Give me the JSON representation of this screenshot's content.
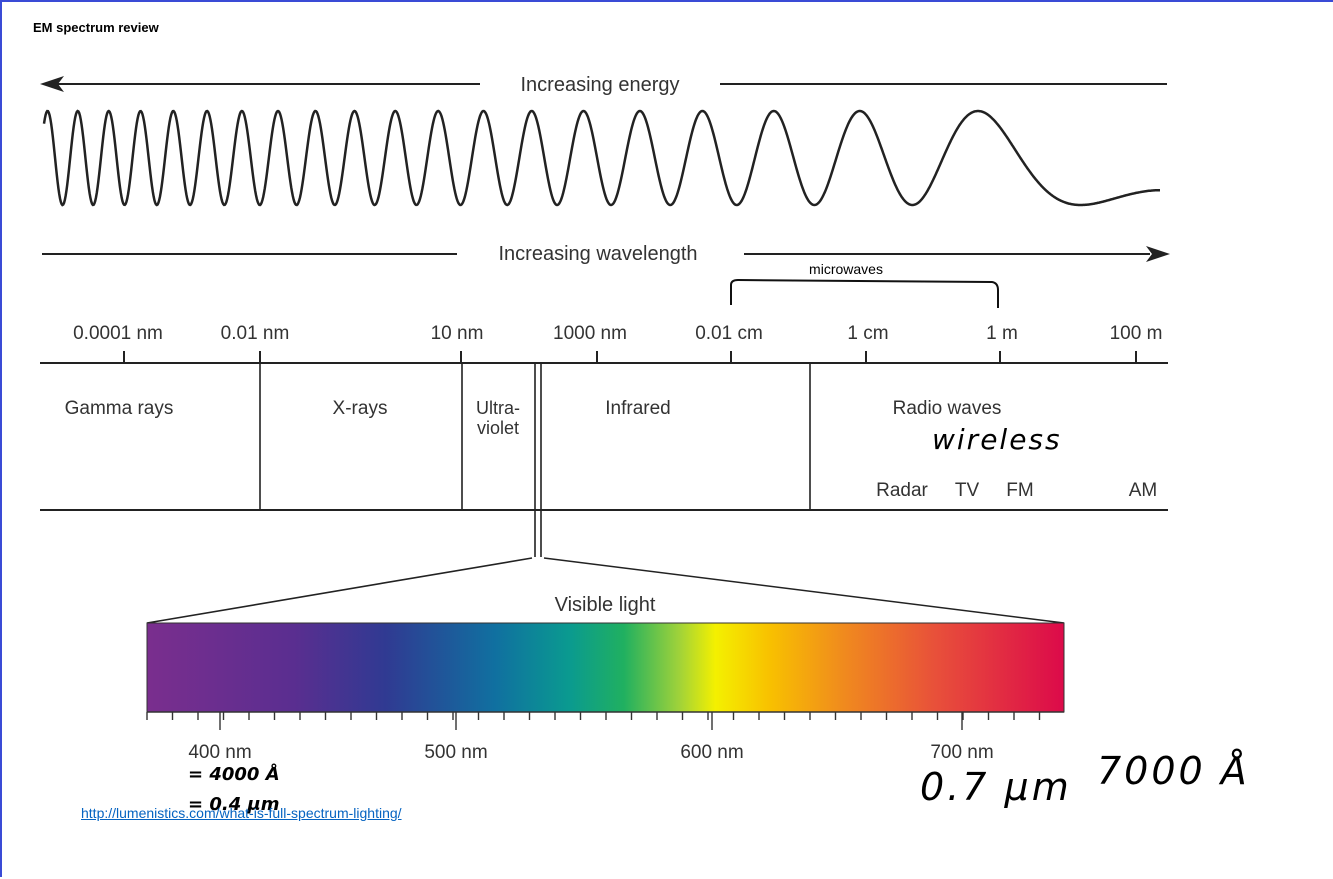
{
  "page": {
    "title": "EM spectrum review"
  },
  "arrows": {
    "energy_label": "Increasing energy",
    "wavelength_label": "Increasing wavelength"
  },
  "scale_ticks": [
    "0.0001 nm",
    "0.01 nm",
    "10 nm",
    "1000 nm",
    "0.01 cm",
    "1 cm",
    "1 m",
    "100 m"
  ],
  "bands": {
    "gamma": "Gamma rays",
    "xray": "X-rays",
    "uv_line1": "Ultra-",
    "uv_line2": "violet",
    "infrared": "Infrared",
    "radio": "Radio waves",
    "radar": "Radar",
    "tv": "TV",
    "fm": "FM",
    "am": "AM"
  },
  "visible": {
    "label": "Visible light",
    "ticks": [
      "400 nm",
      "500 nm",
      "600 nm",
      "700 nm"
    ]
  },
  "annotations": {
    "microwaves": "microwaves",
    "wireless": "wireless",
    "angstrom_4000": "= 4000 Å",
    "micron_04": "= 0.4 μm",
    "angstrom_7000": "7000 Å",
    "micron_07": "0.7 μm"
  },
  "source_link": "http://lumenistics.com/what-is-full-spectrum-lighting/"
}
